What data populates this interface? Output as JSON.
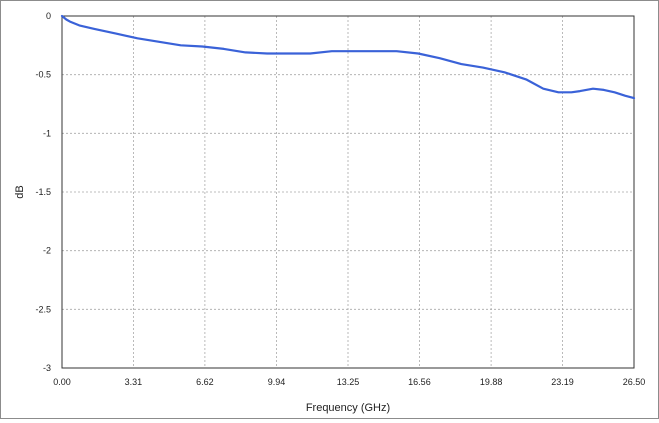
{
  "chart_data": {
    "type": "line",
    "title": "",
    "xlabel": "Frequency (GHz)",
    "ylabel": "dB",
    "xlim": [
      0,
      26.5
    ],
    "ylim": [
      -3,
      0
    ],
    "grid": true,
    "x_ticks": [
      "0.00",
      "3.31",
      "6.62",
      "9.94",
      "13.25",
      "16.56",
      "19.88",
      "23.19",
      "26.50"
    ],
    "x_tick_values": [
      0,
      3.31,
      6.62,
      9.94,
      13.25,
      16.56,
      19.88,
      23.19,
      26.5
    ],
    "y_ticks": [
      "0",
      "-0.5",
      "-1",
      "-1.5",
      "-2",
      "-2.5",
      "-3"
    ],
    "y_tick_values": [
      0,
      -0.5,
      -1,
      -1.5,
      -2,
      -2.5,
      -3
    ],
    "colors": {
      "series": "#3a62d8"
    },
    "series": [
      {
        "x": [
          0,
          0.2,
          0.4,
          0.8,
          1.5,
          2.5,
          3.5,
          4.5,
          5.5,
          6.5,
          7.5,
          8.5,
          9.5,
          10.5,
          11.5,
          12.5,
          13.5,
          14.5,
          15.5,
          16.5,
          17.5,
          18.5,
          19.5,
          20.5,
          21.5,
          22.3,
          23.0,
          23.6,
          24.0,
          24.6,
          25.1,
          25.6,
          26.1,
          26.5
        ],
        "y": [
          0,
          -0.03,
          -0.05,
          -0.08,
          -0.11,
          -0.15,
          -0.19,
          -0.22,
          -0.25,
          -0.26,
          -0.28,
          -0.31,
          -0.32,
          -0.32,
          -0.32,
          -0.3,
          -0.3,
          -0.3,
          -0.3,
          -0.32,
          -0.36,
          -0.41,
          -0.44,
          -0.48,
          -0.54,
          -0.62,
          -0.65,
          -0.65,
          -0.64,
          -0.62,
          -0.63,
          -0.65,
          -0.68,
          -0.7
        ]
      }
    ]
  }
}
